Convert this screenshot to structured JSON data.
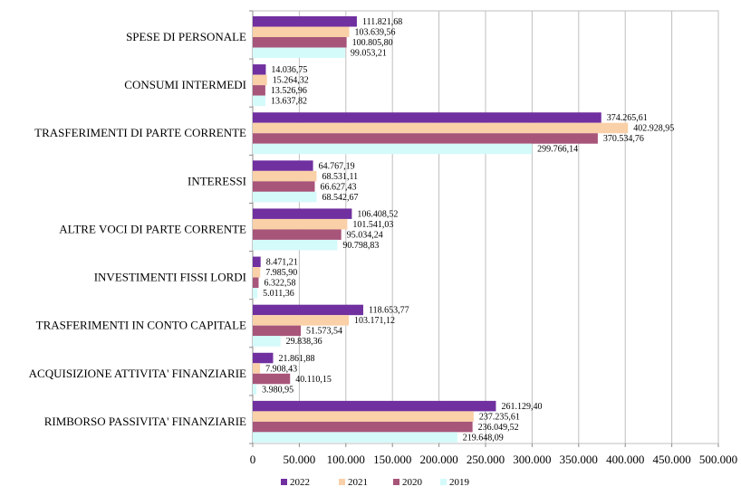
{
  "chart_data": {
    "type": "bar",
    "orientation": "horizontal",
    "categories": [
      "SPESE DI PERSONALE",
      "CONSUMI INTERMEDI",
      "TRASFERIMENTI DI PARTE CORRENTE",
      "INTERESSI",
      "ALTRE VOCI DI PARTE CORRENTE",
      "INVESTIMENTI FISSI LORDI",
      "TRASFERIMENTI IN CONTO CAPITALE",
      "ACQUISIZIONE ATTIVITA' FINANZIARIE",
      "RIMBORSO PASSIVITA' FINANZIARIE"
    ],
    "series": [
      {
        "name": "2022",
        "color": "#7030A0",
        "values": [
          111821.68,
          14036.75,
          374265.61,
          64767.19,
          106408.52,
          8471.21,
          118653.77,
          21861.88,
          261129.4
        ],
        "labels": [
          "111.821,68",
          "14.036,75",
          "374.265,61",
          "64.767,19",
          "106.408,52",
          "8.471,21",
          "118.653,77",
          "21.861,88",
          "261.129,40"
        ]
      },
      {
        "name": "2021",
        "color": "#FAD0A8",
        "values": [
          103639.56,
          15264.32,
          402928.95,
          68531.11,
          101541.03,
          7985.9,
          103171.12,
          7908.43,
          237235.61
        ],
        "labels": [
          "103.639,56",
          "15.264,32",
          "402.928,95",
          "68.531,11",
          "101.541,03",
          "7.985,90",
          "103.171,12",
          "7.908,43",
          "237.235,61"
        ]
      },
      {
        "name": "2020",
        "color": "#A8557A",
        "values": [
          100805.8,
          13526.96,
          370534.76,
          66627.43,
          95034.24,
          6322.58,
          51573.54,
          40110.15,
          236049.52
        ],
        "labels": [
          "100.805,80",
          "13.526,96",
          "370.534,76",
          "66.627,43",
          "95.034,24",
          "6.322,58",
          "51.573,54",
          "40.110,15",
          "236.049,52"
        ]
      },
      {
        "name": "2019",
        "color": "#D4FAFA",
        "values": [
          99053.21,
          13637.82,
          299766.14,
          68542.67,
          90798.83,
          5011.36,
          29838.36,
          3980.95,
          219648.09
        ],
        "labels": [
          "99.053,21",
          "13.637,82",
          "299.766,14",
          "68.542,67",
          "90.798,83",
          "5.011,36",
          "29.838,36",
          "3.980,95",
          "219.648,09"
        ]
      }
    ],
    "xlim": [
      0,
      500000
    ],
    "xticks": [
      0,
      50000,
      100000,
      150000,
      200000,
      250000,
      300000,
      350000,
      400000,
      450000,
      500000
    ],
    "xtick_labels": [
      "0",
      "50.000",
      "100.000",
      "150.000",
      "200.000",
      "250.000",
      "300.000",
      "350.000",
      "400.000",
      "450.000",
      "500.000"
    ],
    "grid": "vertical",
    "legend": "bottom"
  }
}
